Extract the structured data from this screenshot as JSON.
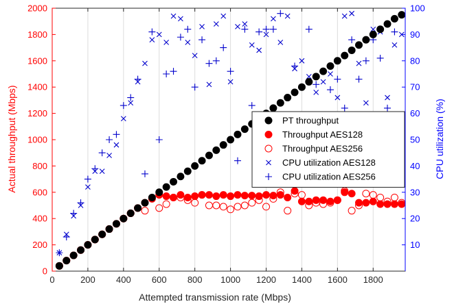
{
  "chart_data": {
    "type": "scatter",
    "xlabel": "Attempted transmission rate (Mbps)",
    "ylabel_left": "Actual throughput (Mbps)",
    "ylabel_right": "CPU utilization (%)",
    "xlim": [
      0,
      1980
    ],
    "ylim_left": [
      0,
      2000
    ],
    "ylim_right": [
      0,
      100
    ],
    "x_ticks": [
      0,
      200,
      400,
      600,
      800,
      1000,
      1200,
      1400,
      1600,
      1800
    ],
    "y_left_ticks": [
      0,
      200,
      400,
      600,
      800,
      1000,
      1200,
      1400,
      1600,
      1800,
      2000
    ],
    "y_right_ticks": [
      10,
      20,
      30,
      40,
      50,
      60,
      70,
      80,
      90,
      100
    ],
    "grid": "vertical",
    "legend_position": "right",
    "colors": {
      "left_axis": "#ff0000",
      "right_axis": "#0000ff",
      "pt": "#000000",
      "aes": "#ff0000",
      "cpu": "#0000cc"
    },
    "series": [
      {
        "name": "PT throughput",
        "axis": "left",
        "marker": "filled-circle",
        "color": "#000000",
        "x": [
          40,
          80,
          120,
          160,
          200,
          240,
          280,
          320,
          360,
          400,
          440,
          480,
          520,
          560,
          600,
          640,
          680,
          720,
          760,
          800,
          840,
          880,
          920,
          960,
          1000,
          1040,
          1080,
          1120,
          1160,
          1200,
          1240,
          1280,
          1320,
          1360,
          1400,
          1440,
          1480,
          1520,
          1560,
          1600,
          1640,
          1680,
          1720,
          1760,
          1800,
          1840,
          1880,
          1920,
          1960
        ],
        "y": [
          40,
          80,
          120,
          160,
          200,
          240,
          280,
          320,
          360,
          400,
          440,
          480,
          520,
          560,
          600,
          640,
          680,
          720,
          760,
          800,
          840,
          880,
          920,
          960,
          1000,
          1040,
          1080,
          1120,
          1160,
          1200,
          1240,
          1280,
          1320,
          1360,
          1400,
          1440,
          1480,
          1520,
          1560,
          1600,
          1640,
          1680,
          1720,
          1760,
          1800,
          1840,
          1880,
          1920,
          1950
        ]
      },
      {
        "name": "Throughput AES128",
        "axis": "left",
        "marker": "filled-circle",
        "color": "#ff0000",
        "x": [
          40,
          80,
          120,
          160,
          200,
          240,
          280,
          320,
          360,
          400,
          440,
          480,
          520,
          560,
          600,
          640,
          680,
          720,
          760,
          800,
          840,
          880,
          920,
          960,
          1000,
          1040,
          1080,
          1120,
          1160,
          1200,
          1240,
          1280,
          1320,
          1360,
          1400,
          1440,
          1480,
          1520,
          1560,
          1600,
          1640,
          1680,
          1720,
          1760,
          1800,
          1840,
          1880,
          1920,
          1960
        ],
        "y": [
          40,
          80,
          120,
          160,
          200,
          240,
          280,
          320,
          360,
          400,
          440,
          480,
          520,
          550,
          580,
          570,
          560,
          580,
          560,
          570,
          580,
          580,
          570,
          580,
          570,
          580,
          575,
          575,
          570,
          580,
          575,
          580,
          560,
          610,
          530,
          530,
          540,
          540,
          530,
          540,
          600,
          590,
          520,
          520,
          530,
          510,
          510,
          510,
          510
        ]
      },
      {
        "name": "Throughput AES256",
        "axis": "left",
        "marker": "open-circle",
        "color": "#ff0000",
        "x": [
          40,
          80,
          120,
          160,
          200,
          240,
          280,
          320,
          360,
          400,
          440,
          480,
          520,
          600,
          640,
          680,
          720,
          760,
          800,
          840,
          880,
          920,
          960,
          1000,
          1040,
          1080,
          1120,
          1160,
          1200,
          1240,
          1280,
          1320,
          1360,
          1400,
          1440,
          1480,
          1520,
          1560,
          1600,
          1640,
          1680,
          1720,
          1760,
          1800,
          1840,
          1880,
          1920,
          1960
        ],
        "y": [
          40,
          80,
          120,
          160,
          200,
          240,
          280,
          320,
          360,
          400,
          440,
          480,
          460,
          480,
          510,
          560,
          560,
          540,
          520,
          580,
          500,
          500,
          490,
          470,
          490,
          500,
          520,
          540,
          490,
          550,
          600,
          460,
          590,
          580,
          500,
          520,
          510,
          520,
          540,
          610,
          460,
          500,
          590,
          580,
          560,
          530,
          560,
          520
        ]
      },
      {
        "name": "CPU utilization AES128",
        "axis": "right",
        "marker": "x",
        "color": "#0000cc",
        "x": [
          40,
          80,
          120,
          160,
          200,
          240,
          280,
          320,
          360,
          400,
          440,
          480,
          520,
          560,
          600,
          640,
          680,
          720,
          760,
          800,
          840,
          880,
          920,
          960,
          1000,
          1040,
          1080,
          1120,
          1160,
          1200,
          1240,
          1280,
          1320,
          1360,
          1400,
          1440,
          1480,
          1520,
          1560,
          1600,
          1640,
          1680,
          1720,
          1760,
          1800,
          1840,
          1880,
          1920,
          1960
        ],
        "y": [
          7,
          14,
          21,
          25,
          32,
          38,
          38,
          44,
          48,
          58,
          64,
          72,
          79,
          88,
          90,
          87,
          97,
          96,
          87,
          82,
          93,
          71,
          94,
          97,
          72,
          93,
          94,
          86,
          84,
          90,
          96,
          87,
          97,
          77,
          80,
          74,
          68,
          72,
          75,
          66,
          97,
          98,
          79,
          64,
          92,
          91,
          66,
          86,
          90
        ]
      },
      {
        "name": "CPU utilization AES256",
        "axis": "right",
        "marker": "plus",
        "color": "#0000cc",
        "x": [
          40,
          80,
          120,
          160,
          200,
          240,
          280,
          320,
          360,
          400,
          440,
          480,
          520,
          560,
          600,
          640,
          680,
          720,
          760,
          800,
          840,
          880,
          920,
          960,
          1000,
          1040,
          1080,
          1120,
          1160,
          1200,
          1240,
          1280,
          1320,
          1360,
          1400,
          1440,
          1480,
          1520,
          1560,
          1600,
          1640,
          1680,
          1720,
          1760,
          1800,
          1840,
          1880,
          1920,
          1960
        ],
        "y": [
          7,
          13,
          22,
          26,
          35,
          39,
          45,
          50,
          52,
          63,
          66,
          73,
          37,
          91,
          50,
          75,
          76,
          89,
          92,
          70,
          88,
          79,
          80,
          85,
          76,
          42,
          92,
          63,
          91,
          92,
          92,
          98,
          56,
          78,
          47,
          92,
          71,
          56,
          69,
          73,
          62,
          88,
          73,
          80,
          88,
          81,
          62,
          91,
          54
        ]
      }
    ]
  }
}
